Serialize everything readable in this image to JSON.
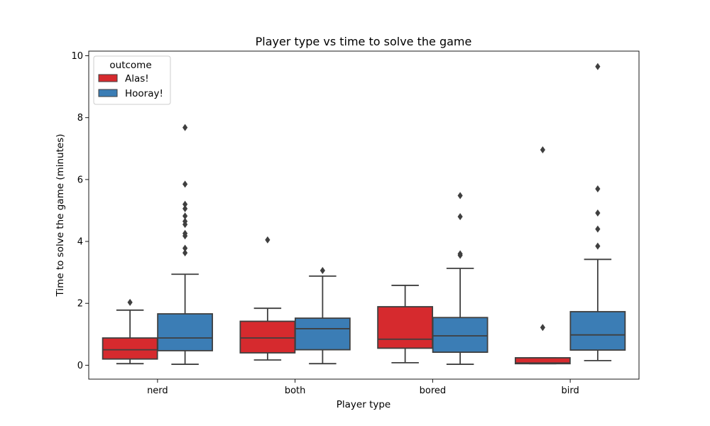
{
  "chart_data": {
    "type": "box",
    "title": "Player type vs time to solve the game",
    "xlabel": "Player type",
    "ylabel": "Time to solve the game (minutes)",
    "categories": [
      "nerd",
      "both",
      "bored",
      "bird"
    ],
    "ylim": [
      -0.45,
      10.15
    ],
    "yticks": [
      0,
      2,
      4,
      6,
      8,
      10
    ],
    "legend": {
      "title": "outcome",
      "position": "top-left",
      "entries": [
        "Alas!",
        "Hooray!"
      ]
    },
    "series": [
      {
        "name": "Alas!",
        "color": "#d62a2e",
        "boxes": [
          {
            "whisker_low": 0.05,
            "q1": 0.2,
            "median": 0.5,
            "q3": 0.88,
            "whisker_high": 1.78,
            "outliers": [
              2.03
            ]
          },
          {
            "whisker_low": 0.17,
            "q1": 0.4,
            "median": 0.88,
            "q3": 1.42,
            "whisker_high": 1.84,
            "outliers": [
              4.05
            ]
          },
          {
            "whisker_low": 0.08,
            "q1": 0.55,
            "median": 0.84,
            "q3": 1.89,
            "whisker_high": 2.58,
            "outliers": []
          },
          {
            "whisker_low": 0.05,
            "q1": 0.05,
            "median": 0.07,
            "q3": 0.24,
            "whisker_high": 0.24,
            "outliers": [
              1.22,
              6.96
            ]
          }
        ]
      },
      {
        "name": "Hooray!",
        "color": "#3b7db5",
        "boxes": [
          {
            "whisker_low": 0.03,
            "q1": 0.47,
            "median": 0.88,
            "q3": 1.66,
            "whisker_high": 2.94,
            "outliers": [
              3.63,
              3.78,
              4.18,
              4.26,
              4.55,
              4.65,
              4.82,
              5.06,
              5.2,
              5.85,
              7.68
            ]
          },
          {
            "whisker_low": 0.05,
            "q1": 0.5,
            "median": 1.18,
            "q3": 1.52,
            "whisker_high": 2.88,
            "outliers": [
              3.06
            ]
          },
          {
            "whisker_low": 0.03,
            "q1": 0.42,
            "median": 0.95,
            "q3": 1.54,
            "whisker_high": 3.13,
            "outliers": [
              3.55,
              3.6,
              4.8,
              5.48
            ]
          },
          {
            "whisker_low": 0.15,
            "q1": 0.49,
            "median": 0.98,
            "q3": 1.73,
            "whisker_high": 3.42,
            "outliers": [
              3.85,
              4.4,
              4.92,
              5.7,
              9.65
            ]
          }
        ]
      }
    ],
    "grid": false
  }
}
